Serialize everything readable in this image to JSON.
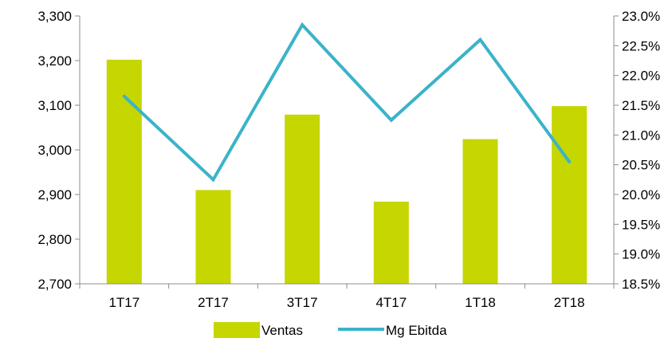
{
  "chart_data": {
    "type": "bar",
    "categories": [
      "1T17",
      "2T17",
      "3T17",
      "4T17",
      "1T18",
      "2T18"
    ],
    "series": [
      {
        "name": "Ventas",
        "type": "bar",
        "axis": "left",
        "color": "#c5d600",
        "values": [
          3202,
          2910,
          3079,
          2884,
          3024,
          3098
        ]
      },
      {
        "name": "Mg Ebitda",
        "type": "line",
        "axis": "right",
        "color": "#3bb3c9",
        "values": [
          21.65,
          20.25,
          22.85,
          21.25,
          22.6,
          20.55
        ]
      }
    ],
    "y_left": {
      "min": 2700,
      "max": 3300,
      "step": 100,
      "tick_labels": [
        "2,700",
        "2,800",
        "2,900",
        "3,000",
        "3,100",
        "3,200",
        "3,300"
      ]
    },
    "y_right": {
      "min": 18.5,
      "max": 23.0,
      "step": 0.5,
      "tick_labels": [
        "18.5%",
        "19.0%",
        "19.5%",
        "20.0%",
        "20.5%",
        "21.0%",
        "21.5%",
        "22.0%",
        "22.5%",
        "23.0%"
      ]
    },
    "grid": false,
    "legend": "bottom"
  }
}
